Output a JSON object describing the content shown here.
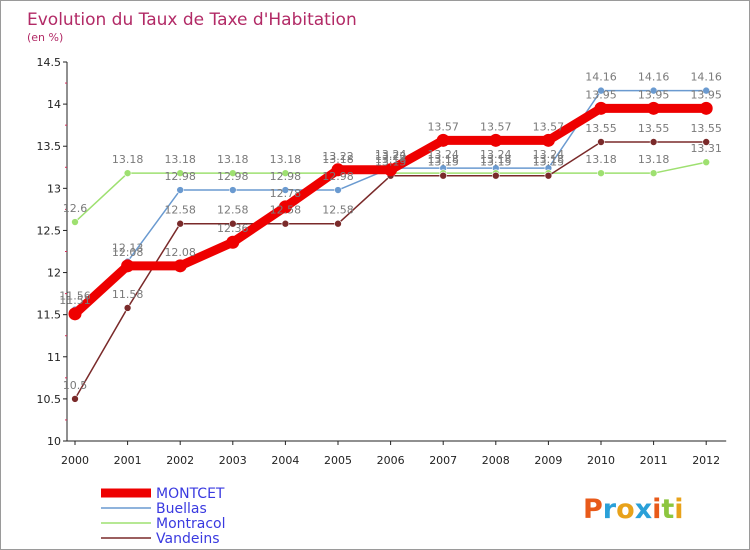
{
  "chart_data": {
    "type": "line",
    "title": "Evolution du Taux de Taxe d'Habitation",
    "ylabel": "(en %)",
    "xlabel": "",
    "x": [
      "2000",
      "2001",
      "2002",
      "2003",
      "2004",
      "2005",
      "2006",
      "2007",
      "2008",
      "2009",
      "2010",
      "2011",
      "2012"
    ],
    "ylim": [
      10,
      14.5
    ],
    "yticks": [
      10,
      10.5,
      11,
      11.5,
      12,
      12.5,
      13,
      13.5,
      14,
      14.5
    ],
    "ytick_labels": [
      "10",
      "10.5",
      "11",
      "11.5",
      "12",
      "12.5",
      "13",
      "13.5",
      "14",
      "14.5"
    ],
    "series": [
      {
        "name": "MONTCET",
        "color": "#ee0000",
        "values": [
          11.51,
          12.08,
          12.08,
          12.36,
          12.78,
          13.22,
          13.22,
          13.57,
          13.57,
          13.57,
          13.95,
          13.95,
          13.95
        ],
        "labels": [
          "11.51",
          "12.08",
          "12.08",
          "12.36",
          "12.78",
          "13.22",
          "13.22",
          "13.57",
          "13.57",
          "13.57",
          "13.95",
          "13.95",
          "13.95"
        ]
      },
      {
        "name": "Buellas",
        "color": "#6a9ad0",
        "values": [
          11.56,
          12.13,
          12.98,
          12.98,
          12.98,
          12.98,
          13.24,
          13.24,
          13.24,
          13.24,
          14.16,
          14.16,
          14.16
        ],
        "labels": [
          "11.56",
          "12.13",
          "12.98",
          "12.98",
          "12.98",
          "12.98",
          "13.24",
          "13.24",
          "13.24",
          "13.24",
          "14.16",
          "14.16",
          "14.16"
        ]
      },
      {
        "name": "Montracol",
        "color": "#9ee070",
        "values": [
          12.6,
          13.18,
          13.18,
          13.18,
          13.18,
          13.18,
          13.18,
          13.18,
          13.18,
          13.18,
          13.18,
          13.18,
          13.31
        ],
        "labels": [
          "12.6",
          "13.18",
          "13.18",
          "13.18",
          "13.18",
          "13.18",
          "13.18",
          "13.18",
          "13.18",
          "13.18",
          "13.18",
          "13.18",
          "13.31"
        ]
      },
      {
        "name": "Vandeins",
        "color": "#7a2a2a",
        "values": [
          10.5,
          11.58,
          12.58,
          12.58,
          12.58,
          12.58,
          13.15,
          13.15,
          13.15,
          13.15,
          13.55,
          13.55,
          13.55
        ],
        "labels": [
          "10.5",
          "11.58",
          "12.58",
          "12.58",
          "12.58",
          "12.58",
          "13.15",
          "13.15",
          "13.15",
          "13.15",
          "13.55",
          "13.55",
          "13.55"
        ]
      }
    ],
    "legend_position": "bottom-left",
    "grid": false
  },
  "logo": {
    "letters": [
      "P",
      "r",
      "o",
      "x",
      "i",
      "t",
      "i"
    ],
    "colors": [
      "#e85a1a",
      "#2aa0d8",
      "#e8a21a",
      "#2aa0d8",
      "#e85a1a",
      "#8cc63f",
      "#e8a21a"
    ]
  }
}
